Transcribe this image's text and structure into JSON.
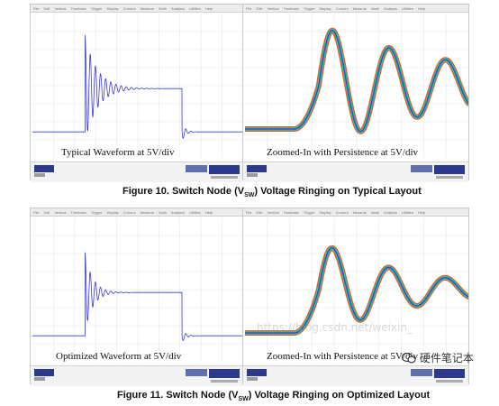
{
  "menu_items": [
    "File",
    "Edit",
    "Vertical",
    "Timebase",
    "Trigger",
    "Display",
    "Cursors",
    "Measure",
    "Math",
    "Analysis",
    "Utilities",
    "Help"
  ],
  "figure10": {
    "left_label": "Typical Waveform at 5V/div",
    "right_label": "Zoomed-In with Persistence at 5V/div",
    "caption_prefix": "Figure 10.   Switch Node (V",
    "caption_sub": "SW",
    "caption_suffix": ") Voltage Ringing on Typical Layout"
  },
  "figure11": {
    "left_label": "Optimized Waveform at 5V/div",
    "right_label": "Zoomed-In with Persistence at 5V/div",
    "caption_prefix": "Figure 11.   Switch Node (V",
    "caption_sub": "SW",
    "caption_suffix": ") Voltage Ringing on Optimized Layout"
  },
  "watermark": {
    "text": "硬件笔记本",
    "url": "https://blog.csdn.net/weixin_"
  },
  "colors": {
    "trace": "#3a3ad0",
    "grid": "#d9d9d9",
    "persist_outer": "#e0602a",
    "persist_mid": "#2fbfa0",
    "persist_inner": "#3040d0"
  }
}
